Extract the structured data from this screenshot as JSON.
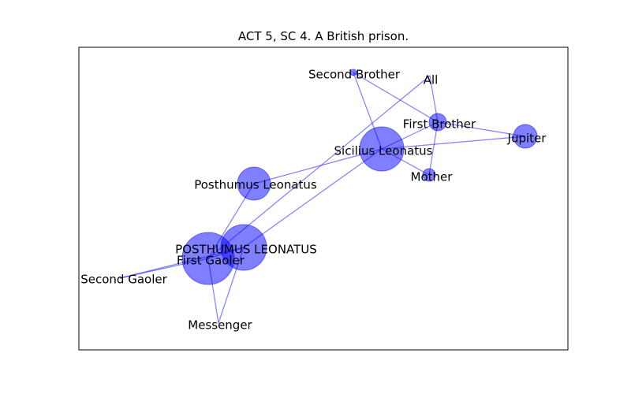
{
  "title": "ACT 5, SC 4. A British prison.",
  "colors": {
    "node_fill": "#0000ff",
    "edge": "#0000ff",
    "frame": "#000000"
  },
  "nodes": [
    {
      "id": "second_brother",
      "label": "Second Brother"
    },
    {
      "id": "all",
      "label": "All"
    },
    {
      "id": "first_brother",
      "label": "First Brother"
    },
    {
      "id": "jupiter",
      "label": "Jupiter"
    },
    {
      "id": "sicilius",
      "label": "Sicilius Leonatus"
    },
    {
      "id": "mother",
      "label": "Mother"
    },
    {
      "id": "posthumus_small",
      "label": "Posthumus Leonatus"
    },
    {
      "id": "posthumus_caps",
      "label": "POSTHUMUS LEONATUS"
    },
    {
      "id": "first_gaoler",
      "label": "First Gaoler"
    },
    {
      "id": "second_gaoler",
      "label": "Second Gaoler"
    },
    {
      "id": "messenger",
      "label": "Messenger"
    }
  ],
  "edges": [
    [
      "second_brother",
      "sicilius"
    ],
    [
      "second_brother",
      "first_brother"
    ],
    [
      "all",
      "first_gaoler"
    ],
    [
      "all",
      "first_brother"
    ],
    [
      "first_brother",
      "jupiter"
    ],
    [
      "first_brother",
      "sicilius"
    ],
    [
      "first_brother",
      "mother"
    ],
    [
      "sicilius",
      "jupiter"
    ],
    [
      "sicilius",
      "mother"
    ],
    [
      "sicilius",
      "posthumus_small"
    ],
    [
      "sicilius",
      "posthumus_caps"
    ],
    [
      "posthumus_small",
      "first_gaoler"
    ],
    [
      "posthumus_caps",
      "first_gaoler"
    ],
    [
      "posthumus_caps",
      "second_gaoler"
    ],
    [
      "posthumus_caps",
      "messenger"
    ],
    [
      "first_gaoler",
      "second_gaoler"
    ],
    [
      "first_gaoler",
      "messenger"
    ]
  ]
}
